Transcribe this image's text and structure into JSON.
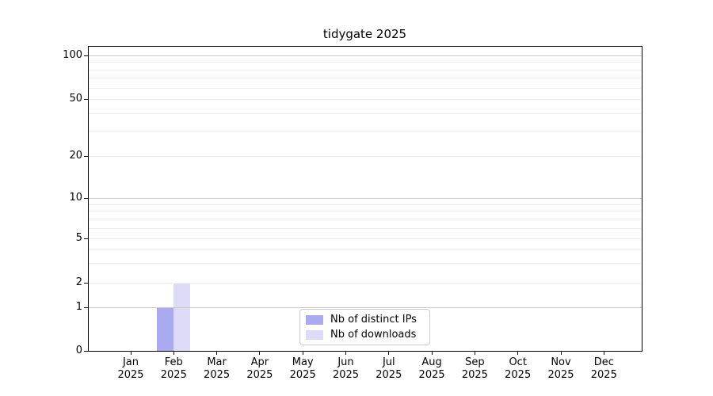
{
  "chart_data": {
    "type": "bar",
    "title": "tidygate 2025",
    "x_axis": {
      "months": [
        "Jan",
        "Feb",
        "Mar",
        "Apr",
        "May",
        "Jun",
        "Jul",
        "Aug",
        "Sep",
        "Oct",
        "Nov",
        "Dec"
      ],
      "year": "2025"
    },
    "categories": [
      "Jan 2025",
      "Feb 2025",
      "Mar 2025",
      "Apr 2025",
      "May 2025",
      "Jun 2025",
      "Jul 2025",
      "Aug 2025",
      "Sep 2025",
      "Oct 2025",
      "Nov 2025",
      "Dec 2025"
    ],
    "y_axis": {
      "tick_values": [
        0,
        1,
        2,
        5,
        10,
        20,
        50,
        100
      ],
      "major_gridlines": [
        1,
        10,
        100
      ],
      "minor_gridlines": [
        2,
        3,
        4,
        5,
        6,
        7,
        8,
        9,
        20,
        30,
        40,
        50,
        60,
        70,
        80,
        90
      ],
      "scale_anchors": [
        [
          0,
          0
        ],
        [
          1,
          0.1432
        ],
        [
          2,
          0.224
        ],
        [
          5,
          0.3698
        ],
        [
          10,
          0.5026
        ],
        [
          20,
          0.6406
        ],
        [
          50,
          0.8281
        ],
        [
          100,
          0.9714
        ]
      ]
    },
    "series": [
      {
        "name": "Nb of distinct IPs",
        "color": "#aaaaf0",
        "values": [
          0,
          1,
          0,
          0,
          0,
          0,
          0,
          0,
          0,
          0,
          0,
          0
        ]
      },
      {
        "name": "Nb of downloads",
        "color": "#dcdcf8",
        "values": [
          0,
          2,
          0,
          0,
          0,
          0,
          0,
          0,
          0,
          0,
          0,
          0
        ]
      }
    ],
    "legend": {
      "position": "bottom-center-inside"
    },
    "grid": true,
    "colors": {
      "major_grid": "#c9c9c9",
      "minor_grid": "#f0f0f0",
      "axis": "#000000",
      "text": "#000000",
      "legend_border": "#cccccc",
      "background": "#ffffff"
    }
  }
}
